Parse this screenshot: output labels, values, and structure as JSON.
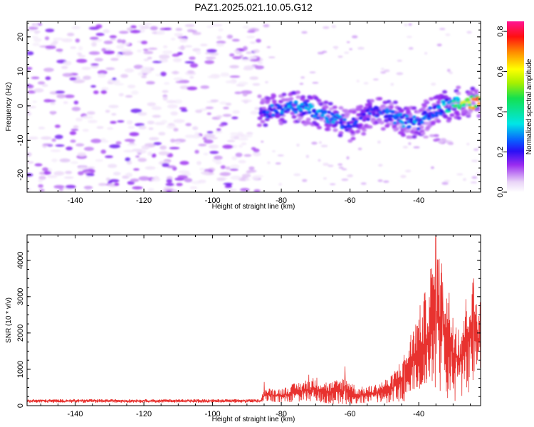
{
  "title": "PAZ1.2025.021.10.05.G12",
  "chart_data": [
    {
      "type": "heatmap",
      "xlabel": "Height of straight line (km)",
      "ylabel": "Frequency (Hz)",
      "xlim": [
        -154,
        -22
      ],
      "ylim": [
        -25,
        24.5
      ],
      "xticks": [
        -140,
        -120,
        -100,
        -80,
        -60,
        -40
      ],
      "yticks": [
        -20,
        -10,
        0,
        10,
        20
      ],
      "colorbar": {
        "label": "Normalized spectral amplitude",
        "range": [
          0,
          0.85
        ],
        "ticks": [
          0.0,
          0.2,
          0.4,
          0.6,
          0.8
        ],
        "tick_labels": [
          "0.0",
          "0.2",
          "0.4",
          "0.6",
          "0.8"
        ]
      },
      "noise_region": {
        "x_range": [
          -154,
          -86
        ],
        "freq_range": [
          -25,
          24
        ],
        "amplitude_range": [
          0.02,
          0.16
        ]
      },
      "signal_ridge": [
        {
          "x": -86,
          "freq": -2,
          "amp": 0.18
        },
        {
          "x": -84,
          "freq": -1.5,
          "amp": 0.28
        },
        {
          "x": -80,
          "freq": -1,
          "amp": 0.3
        },
        {
          "x": -76,
          "freq": -0.5,
          "amp": 0.32
        },
        {
          "x": -72,
          "freq": -1,
          "amp": 0.3
        },
        {
          "x": -68,
          "freq": -2.5,
          "amp": 0.32
        },
        {
          "x": -64,
          "freq": -4,
          "amp": 0.3
        },
        {
          "x": -60,
          "freq": -6,
          "amp": 0.26
        },
        {
          "x": -57,
          "freq": -4,
          "amp": 0.22
        },
        {
          "x": -53,
          "freq": -1,
          "amp": 0.26
        },
        {
          "x": -48,
          "freq": -3,
          "amp": 0.3
        },
        {
          "x": -44,
          "freq": -4.5,
          "amp": 0.3
        },
        {
          "x": -40,
          "freq": -5,
          "amp": 0.32
        },
        {
          "x": -36,
          "freq": -2,
          "amp": 0.28
        },
        {
          "x": -32,
          "freq": 0,
          "amp": 0.36
        },
        {
          "x": -28,
          "freq": 1,
          "amp": 0.55
        },
        {
          "x": -25,
          "freq": 1,
          "amp": 0.7
        },
        {
          "x": -22,
          "freq": 1,
          "amp": 0.8
        }
      ],
      "secondary_band": {
        "x_range": [
          -48,
          -30
        ],
        "freq_from": -5,
        "freq_to": -11,
        "amp": 0.1
      }
    },
    {
      "type": "line",
      "xlabel": "Height of straight line (km)",
      "ylabel": "SNR (10 * v/v)",
      "xlim": [
        -154,
        -22
      ],
      "ylim": [
        0,
        4700
      ],
      "xticks": [
        -140,
        -120,
        -100,
        -80,
        -60,
        -40
      ],
      "yticks": [
        0,
        1000,
        2000,
        3000,
        4000
      ],
      "series": [
        {
          "color": "#e8322f",
          "envelope": [
            {
              "x": -154,
              "mean": 130,
              "amp": 50
            },
            {
              "x": -86,
              "mean": 130,
              "amp": 50
            },
            {
              "x": -85,
              "mean": 300,
              "amp": 180
            },
            {
              "x": -80,
              "mean": 280,
              "amp": 200
            },
            {
              "x": -75,
              "mean": 380,
              "amp": 280
            },
            {
              "x": -70,
              "mean": 450,
              "amp": 350
            },
            {
              "x": -66,
              "mean": 350,
              "amp": 300
            },
            {
              "x": -61,
              "mean": 430,
              "amp": 400
            },
            {
              "x": -58,
              "mean": 280,
              "amp": 220
            },
            {
              "x": -53,
              "mean": 330,
              "amp": 250
            },
            {
              "x": -48,
              "mean": 450,
              "amp": 380
            },
            {
              "x": -44,
              "mean": 800,
              "amp": 700
            },
            {
              "x": -42,
              "mean": 1250,
              "amp": 900
            },
            {
              "x": -38,
              "mean": 1700,
              "amp": 1500
            },
            {
              "x": -35,
              "mean": 2600,
              "amp": 2100
            },
            {
              "x": -31,
              "mean": 1600,
              "amp": 1600
            },
            {
              "x": -28,
              "mean": 1200,
              "amp": 1100
            },
            {
              "x": -25,
              "mean": 2000,
              "amp": 1600
            },
            {
              "x": -22,
              "mean": 1800,
              "amp": 1200
            }
          ],
          "peaks": [
            {
              "x": -85,
              "y": 650
            },
            {
              "x": -72,
              "y": 850
            },
            {
              "x": -61.5,
              "y": 1080
            },
            {
              "x": -44,
              "y": 1250
            },
            {
              "x": -42.5,
              "y": 1750
            },
            {
              "x": -38,
              "y": 2900
            },
            {
              "x": -35.5,
              "y": 3550
            },
            {
              "x": -35,
              "y": 4700
            },
            {
              "x": -33,
              "y": 3400
            },
            {
              "x": -24,
              "y": 3500
            }
          ]
        }
      ]
    }
  ]
}
